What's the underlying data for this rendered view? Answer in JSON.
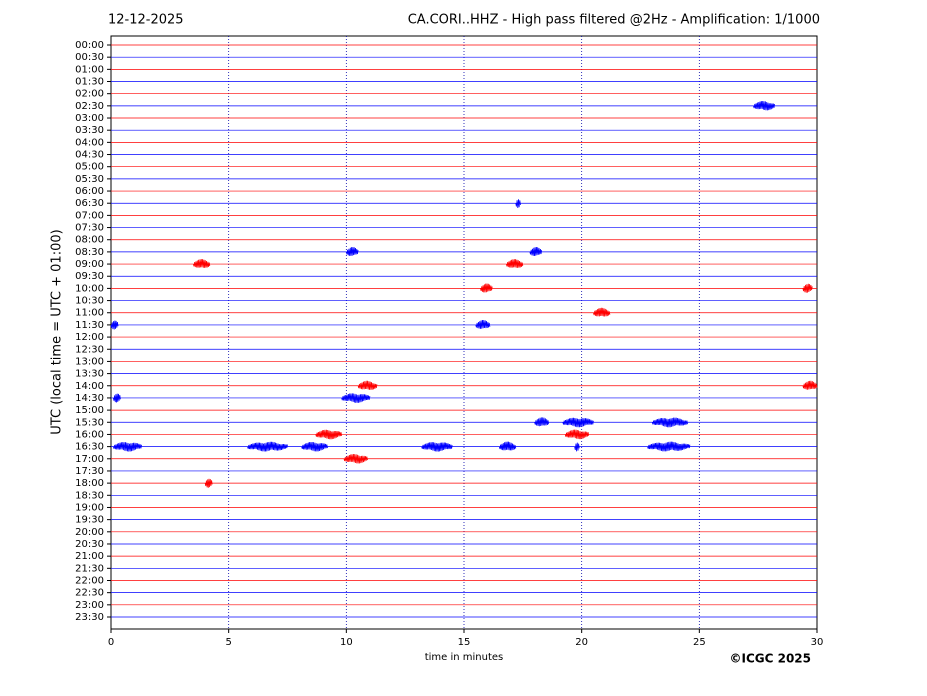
{
  "chart_data": {
    "type": "helicorder",
    "date": "12-12-2025",
    "title": "CA.CORI..HHZ - High pass filtered @2Hz - Amplification: 1/1000",
    "ylabel": "UTC (local time = UTC + 01:00)",
    "xlabel": "time in minutes",
    "copyright": "©ICGC 2025",
    "categories": [
      "00:00",
      "00:30",
      "01:00",
      "01:30",
      "02:00",
      "02:30",
      "03:00",
      "03:30",
      "04:00",
      "04:30",
      "05:00",
      "05:30",
      "06:00",
      "06:30",
      "07:00",
      "07:30",
      "08:00",
      "08:30",
      "09:00",
      "09:30",
      "10:00",
      "10:30",
      "11:00",
      "11:30",
      "12:00",
      "12:30",
      "13:00",
      "13:30",
      "14:00",
      "14:30",
      "15:00",
      "15:30",
      "16:00",
      "16:30",
      "17:00",
      "17:30",
      "18:00",
      "18:30",
      "19:00",
      "19:30",
      "20:00",
      "20:30",
      "21:00",
      "21:30",
      "22:00",
      "22:30",
      "23:00",
      "23:30"
    ],
    "colors": [
      "#ff0000",
      "#0000ff"
    ],
    "xlim": [
      0,
      30
    ],
    "xticks": [
      0,
      5,
      10,
      15,
      20,
      25,
      30
    ],
    "grid": true,
    "events": [
      {
        "row": 5,
        "start": 27.3,
        "end": 28.2
      },
      {
        "row": 13,
        "start": 17.2,
        "end": 17.4
      },
      {
        "row": 17,
        "start": 10.0,
        "end": 10.5
      },
      {
        "row": 17,
        "start": 17.8,
        "end": 18.3
      },
      {
        "row": 18,
        "start": 3.5,
        "end": 4.2
      },
      {
        "row": 18,
        "start": 16.8,
        "end": 17.5
      },
      {
        "row": 20,
        "start": 15.7,
        "end": 16.2
      },
      {
        "row": 20,
        "start": 29.4,
        "end": 29.8
      },
      {
        "row": 22,
        "start": 20.5,
        "end": 21.2
      },
      {
        "row": 23,
        "start": 0.0,
        "end": 0.3
      },
      {
        "row": 23,
        "start": 15.5,
        "end": 16.1
      },
      {
        "row": 28,
        "start": 10.5,
        "end": 11.3
      },
      {
        "row": 28,
        "start": 29.4,
        "end": 30.0
      },
      {
        "row": 29,
        "start": 0.1,
        "end": 0.4
      },
      {
        "row": 29,
        "start": 9.8,
        "end": 11.0
      },
      {
        "row": 31,
        "start": 18.0,
        "end": 18.6
      },
      {
        "row": 31,
        "start": 19.2,
        "end": 20.5
      },
      {
        "row": 31,
        "start": 23.0,
        "end": 24.5
      },
      {
        "row": 32,
        "start": 8.7,
        "end": 9.8
      },
      {
        "row": 32,
        "start": 19.3,
        "end": 20.3
      },
      {
        "row": 33,
        "start": 0.1,
        "end": 1.3
      },
      {
        "row": 33,
        "start": 5.8,
        "end": 7.5
      },
      {
        "row": 33,
        "start": 8.1,
        "end": 9.2
      },
      {
        "row": 33,
        "start": 13.2,
        "end": 14.5
      },
      {
        "row": 33,
        "start": 16.5,
        "end": 17.2
      },
      {
        "row": 33,
        "start": 19.7,
        "end": 19.9
      },
      {
        "row": 33,
        "start": 22.8,
        "end": 24.6
      },
      {
        "row": 34,
        "start": 9.9,
        "end": 10.9
      },
      {
        "row": 36,
        "start": 4.0,
        "end": 4.3
      }
    ]
  }
}
